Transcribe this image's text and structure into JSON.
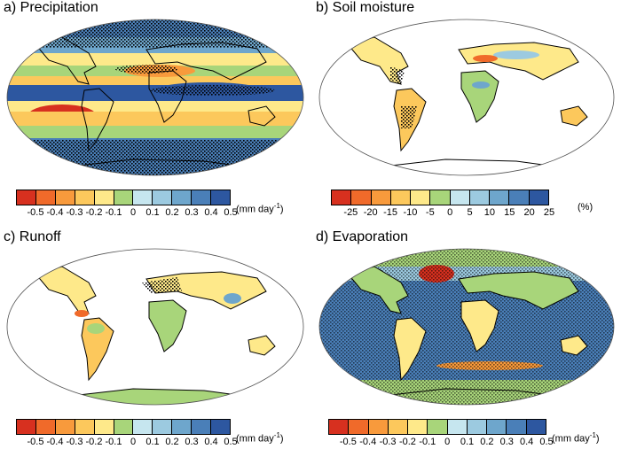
{
  "palette": [
    "#d7301f",
    "#f06a2a",
    "#f89a3c",
    "#fcc85c",
    "#fee98a",
    "#a8d57a",
    "#c6e6ef",
    "#9ccae0",
    "#6ea6cc",
    "#4a7fb8",
    "#2d57a0"
  ],
  "hatch_color": "#000000",
  "land_color": "#ffffff",
  "panels": [
    {
      "id": "a",
      "title": "a) Precipitation",
      "field": "precipitation",
      "ticks": [
        "-0.5",
        "-0.4",
        "-0.3",
        "-0.2",
        "-0.1",
        "0",
        "0.1",
        "0.2",
        "0.3",
        "0.4",
        "0.5"
      ],
      "unit_prefix": "(mm day",
      "unit_sup": "-1",
      "unit_suffix": ")",
      "coverage": "global ocean and land"
    },
    {
      "id": "b",
      "title": "b) Soil moisture",
      "field": "soil-moisture",
      "ticks": [
        "-25",
        "-20",
        "-15",
        "-10",
        "-5",
        "0",
        "5",
        "10",
        "15",
        "20",
        "25"
      ],
      "unit_prefix": "(%)",
      "unit_sup": "",
      "unit_suffix": "",
      "coverage": "land only"
    },
    {
      "id": "c",
      "title": "c) Runoff",
      "field": "runoff",
      "ticks": [
        "-0.5",
        "-0.4",
        "-0.3",
        "-0.2",
        "-0.1",
        "0",
        "0.1",
        "0.2",
        "0.3",
        "0.4",
        "0.5"
      ],
      "unit_prefix": "(mm day",
      "unit_sup": "-1",
      "unit_suffix": ")",
      "coverage": "land only"
    },
    {
      "id": "d",
      "title": "d) Evaporation",
      "field": "evaporation",
      "ticks": [
        "-0.5",
        "-0.4",
        "-0.3",
        "-0.2",
        "-0.1",
        "0",
        "0.1",
        "0.2",
        "0.3",
        "0.4",
        "0.5"
      ],
      "unit_prefix": "(mm day",
      "unit_sup": "-1",
      "unit_suffix": ")",
      "coverage": "global ocean and land"
    }
  ]
}
